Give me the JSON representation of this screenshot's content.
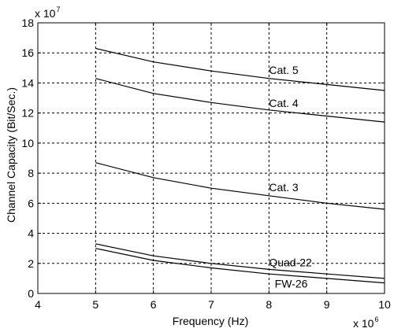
{
  "chart_data": {
    "type": "line",
    "xlabel": "Frequency (Hz)",
    "ylabel": "Channel Capacity (Bit/Sec.)",
    "x_multiplier": {
      "base": "x 10",
      "exp": "6"
    },
    "y_multiplier": {
      "base": "x 10",
      "exp": "7"
    },
    "xlim": [
      4,
      10
    ],
    "ylim": [
      0,
      18
    ],
    "xticks": [
      "4",
      "5",
      "6",
      "7",
      "8",
      "9",
      "10"
    ],
    "yticks": [
      "0",
      "2",
      "4",
      "6",
      "8",
      "10",
      "12",
      "14",
      "16",
      "18"
    ],
    "grid": true,
    "series": [
      {
        "name": "Cat. 5",
        "x": [
          5,
          6,
          7,
          8,
          9,
          10
        ],
        "y": [
          16.3,
          15.4,
          14.8,
          14.3,
          13.9,
          13.5
        ]
      },
      {
        "name": "Cat. 4",
        "x": [
          5,
          6,
          7,
          8,
          9,
          10
        ],
        "y": [
          14.3,
          13.3,
          12.7,
          12.2,
          11.8,
          11.4
        ]
      },
      {
        "name": "Cat. 3",
        "x": [
          5,
          6,
          7,
          8,
          9,
          10
        ],
        "y": [
          8.7,
          7.7,
          7.0,
          6.5,
          6.0,
          5.6
        ]
      },
      {
        "name": "Quad-22",
        "x": [
          5,
          6,
          7,
          8,
          9,
          10
        ],
        "y": [
          3.3,
          2.5,
          2.0,
          1.6,
          1.3,
          1.0
        ]
      },
      {
        "name": "FW-26",
        "x": [
          5,
          6,
          7,
          8,
          9,
          10
        ],
        "y": [
          3.0,
          2.2,
          1.7,
          1.3,
          1.0,
          0.7
        ]
      }
    ]
  }
}
